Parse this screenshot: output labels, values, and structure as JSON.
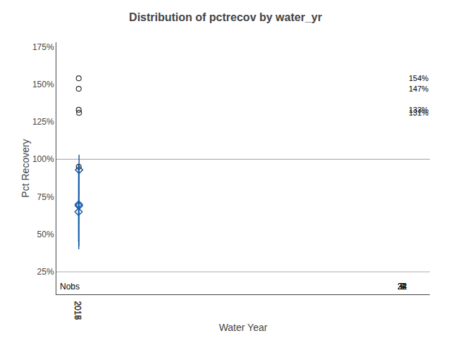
{
  "chart_data": {
    "type": "box",
    "title": "Distribution of pctrecov by water_yr",
    "xlabel": "Water Year",
    "ylabel": "Pct Recovery",
    "categories": [
      "2015",
      "2016",
      "2017",
      "2018"
    ],
    "q1": [
      50,
      57,
      57,
      84
    ],
    "median": [
      60,
      63,
      68,
      91
    ],
    "q3": [
      75,
      70,
      75,
      95
    ],
    "mean": [
      65,
      70,
      69,
      93
    ],
    "whisker_low": [
      45,
      40,
      42,
      75
    ],
    "whisker_high": [
      97,
      83,
      91,
      103
    ],
    "outliers": [
      [],
      [
        95,
        133,
        147,
        154
      ],
      [],
      [
        131
      ]
    ],
    "labeled_outliers": [
      {
        "category": "2016",
        "value": 154,
        "label": "154%"
      },
      {
        "category": "2016",
        "value": 147,
        "label": "147%"
      },
      {
        "category": "2016",
        "value": 133,
        "label": "133%"
      },
      {
        "category": "2018",
        "value": 131,
        "label": "131%"
      }
    ],
    "nobs_label": "Nobs",
    "nobs": [
      7,
      34,
      22,
      9
    ],
    "hlines": [
      {
        "y": 100,
        "color": "#999999"
      },
      {
        "y": 25,
        "color": "#aaaaaa"
      }
    ],
    "ylim": [
      10,
      178
    ],
    "yticks": [
      {
        "value": 25,
        "label": "25%"
      },
      {
        "value": 50,
        "label": "50%"
      },
      {
        "value": 75,
        "label": "75%"
      },
      {
        "value": 100,
        "label": "100%"
      },
      {
        "value": 125,
        "label": "125%"
      },
      {
        "value": 150,
        "label": "150%"
      },
      {
        "value": 175,
        "label": "175%"
      }
    ],
    "grid": false,
    "color": "#c8d8e8",
    "line_color": "#1a5fa8",
    "outlier_color": "#333333"
  }
}
